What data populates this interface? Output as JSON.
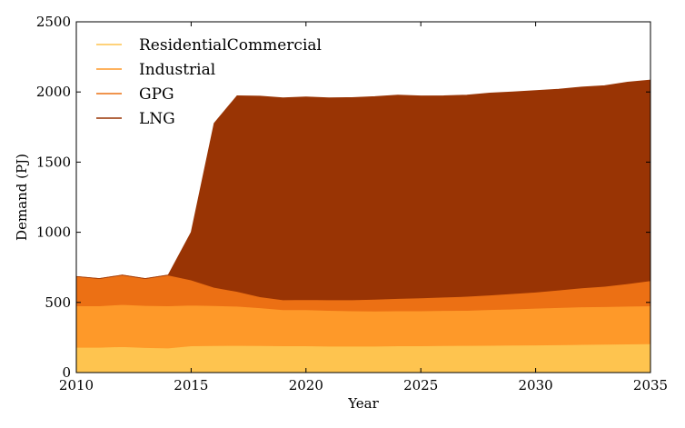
{
  "chart_data": {
    "type": "area",
    "stacked": true,
    "xlabel": "Year",
    "ylabel": "Demand (PJ)",
    "xlim": [
      2010,
      2035
    ],
    "ylim": [
      0,
      2500
    ],
    "xticks": [
      2010,
      2015,
      2020,
      2025,
      2030,
      2035
    ],
    "yticks": [
      0,
      500,
      1000,
      1500,
      2000,
      2500
    ],
    "grid": false,
    "legend_position": "top-left",
    "x": [
      2010,
      2011,
      2012,
      2013,
      2014,
      2015,
      2016,
      2017,
      2018,
      2019,
      2020,
      2021,
      2022,
      2023,
      2024,
      2025,
      2026,
      2027,
      2028,
      2029,
      2030,
      2031,
      2032,
      2033,
      2034,
      2035
    ],
    "series": [
      {
        "name": "ResidentialCommercial",
        "color": "#fec44f",
        "values": [
          180,
          180,
          185,
          178,
          175,
          190,
          192,
          193,
          192,
          190,
          190,
          188,
          188,
          188,
          190,
          190,
          192,
          193,
          194,
          195,
          196,
          198,
          200,
          202,
          203,
          205
        ]
      },
      {
        "name": "Industrial",
        "color": "#fe9929",
        "values": [
          295,
          295,
          300,
          300,
          300,
          290,
          285,
          280,
          270,
          258,
          258,
          255,
          252,
          250,
          250,
          250,
          250,
          250,
          255,
          258,
          262,
          265,
          268,
          268,
          270,
          270
        ]
      },
      {
        "name": "GPG",
        "color": "#ec7014",
        "values": [
          210,
          195,
          210,
          192,
          220,
          180,
          130,
          105,
          78,
          70,
          72,
          75,
          78,
          84,
          88,
          92,
          96,
          100,
          103,
          110,
          115,
          125,
          135,
          145,
          160,
          180
        ]
      },
      {
        "name": "LNG",
        "color": "#993404",
        "values": [
          0,
          0,
          0,
          0,
          0,
          340,
          1170,
          1395,
          1430,
          1440,
          1445,
          1440,
          1442,
          1445,
          1450,
          1440,
          1435,
          1435,
          1440,
          1437,
          1437,
          1432,
          1432,
          1430,
          1437,
          1430
        ]
      }
    ]
  }
}
